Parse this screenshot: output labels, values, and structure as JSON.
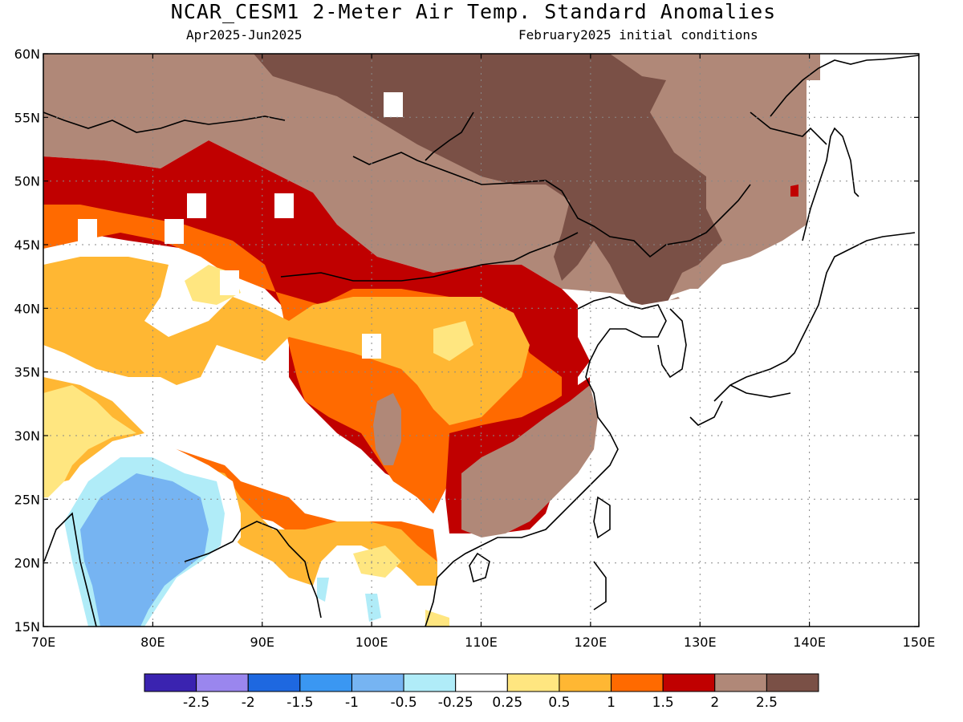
{
  "title": "NCAR_CESM1 2-Meter Air Temp. Standard Anomalies",
  "subtitle_left": "Apr2025-Jun2025",
  "subtitle_right": "February2025 initial conditions",
  "map": {
    "lon_range": [
      70,
      150
    ],
    "lat_range": [
      15,
      60
    ],
    "lon_ticks": [
      "70E",
      "80E",
      "90E",
      "100E",
      "110E",
      "120E",
      "130E",
      "140E",
      "150E"
    ],
    "lat_ticks": [
      "15N",
      "20N",
      "25N",
      "30N",
      "35N",
      "40N",
      "45N",
      "50N",
      "55N",
      "60N"
    ],
    "grid": "dotted"
  },
  "colorbar": {
    "colors": [
      "#3a23b0",
      "#9a86ee",
      "#1e68e0",
      "#3a97f2",
      "#76b4f2",
      "#b0ecf8",
      "#ffffff",
      "#ffe680",
      "#ffb733",
      "#ff6a00",
      "#c00000",
      "#b08878",
      "#7a5046"
    ],
    "labels": [
      "-2.5",
      "-2",
      "-1.5",
      "-1",
      "-0.5",
      "-0.25",
      "0.25",
      "0.5",
      "1",
      "1.5",
      "2",
      "2.5"
    ]
  }
}
